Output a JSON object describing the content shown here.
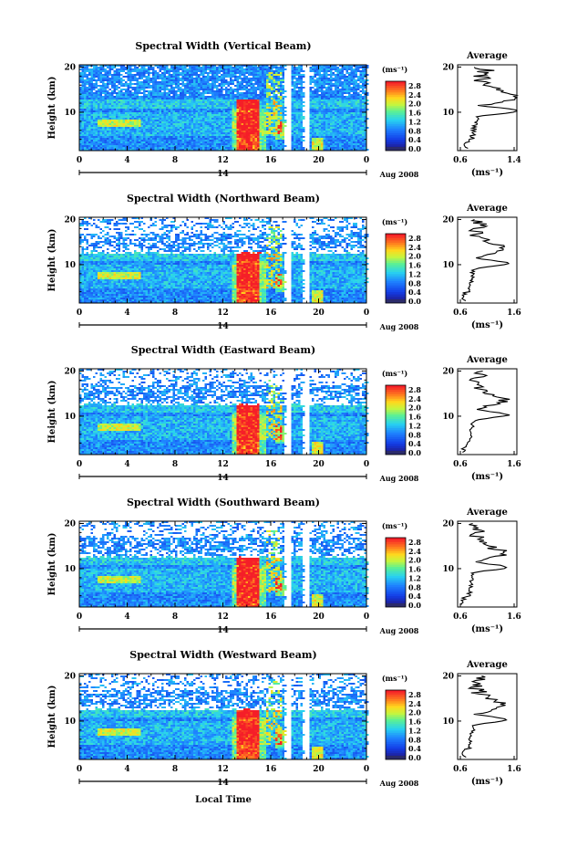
{
  "figure": {
    "xlabel": "Local Time",
    "date_label": "Aug 2008",
    "day_label": "14",
    "ylabel": "Height (km)",
    "average_title": "Average",
    "unit_label": "(ms⁻¹)"
  },
  "chart_data": [
    {
      "type": "heatmap",
      "title": "Spectral Width (Vertical Beam)",
      "xlabel": "",
      "ylabel": "Height (km)",
      "x_ticks": [
        "0",
        "4",
        "8",
        "12",
        "16",
        "20",
        "0"
      ],
      "xlim": [
        0,
        24
      ],
      "y_ticks": [
        "20",
        "10"
      ],
      "ylim": [
        1.5,
        20.5
      ],
      "colorbar": {
        "unit": "(ms⁻¹)",
        "ticks": [
          "2.8",
          "2.4",
          "2.0",
          "1.6",
          "1.2",
          "0.8",
          "0.4",
          "0.0"
        ],
        "range": [
          0.0,
          3.0
        ]
      },
      "average_profile": {
        "title": "Average",
        "x_ticks": [
          "0.6",
          "1.4"
        ],
        "xlim": [
          0.6,
          1.4
        ],
        "xunit": "(ms⁻¹)",
        "y_ticks": [
          "20",
          "10"
        ]
      },
      "data_gaps_hours": [
        [
          17.1,
          17.6
        ],
        [
          18.6,
          19.1
        ]
      ],
      "grid": false
    },
    {
      "type": "heatmap",
      "title": "Spectral Width (Northward Beam)",
      "xlabel": "",
      "ylabel": "Height (km)",
      "x_ticks": [
        "0",
        "4",
        "8",
        "12",
        "16",
        "20",
        "0"
      ],
      "xlim": [
        0,
        24
      ],
      "y_ticks": [
        "20",
        "10"
      ],
      "ylim": [
        1.5,
        20.5
      ],
      "colorbar": {
        "unit": "(ms⁻¹)",
        "ticks": [
          "2.8",
          "2.4",
          "2.0",
          "1.6",
          "1.2",
          "0.8",
          "0.4",
          "0.0"
        ],
        "range": [
          0.0,
          3.0
        ]
      },
      "average_profile": {
        "title": "Average",
        "x_ticks": [
          "0.6",
          "1.6"
        ],
        "xlim": [
          0.6,
          1.6
        ],
        "xunit": "(ms⁻¹)",
        "y_ticks": [
          "20",
          "10"
        ]
      },
      "data_gaps_hours": [
        [
          17.1,
          17.6
        ],
        [
          18.6,
          19.1
        ]
      ],
      "grid": false
    },
    {
      "type": "heatmap",
      "title": "Spectral Width (Eastward Beam)",
      "xlabel": "",
      "ylabel": "Height (km)",
      "x_ticks": [
        "0",
        "4",
        "8",
        "12",
        "16",
        "20",
        "0"
      ],
      "xlim": [
        0,
        24
      ],
      "y_ticks": [
        "20",
        "10"
      ],
      "ylim": [
        1.5,
        20.5
      ],
      "colorbar": {
        "unit": "(ms⁻¹)",
        "ticks": [
          "2.8",
          "2.4",
          "2.0",
          "1.6",
          "1.2",
          "0.8",
          "0.4",
          "0.0"
        ],
        "range": [
          0.0,
          3.0
        ]
      },
      "average_profile": {
        "title": "Average",
        "x_ticks": [
          "0.6",
          "1.6"
        ],
        "xlim": [
          0.6,
          1.6
        ],
        "xunit": "(ms⁻¹)",
        "y_ticks": [
          "20",
          "10"
        ]
      },
      "data_gaps_hours": [
        [
          17.1,
          17.6
        ],
        [
          18.6,
          19.1
        ]
      ],
      "grid": false
    },
    {
      "type": "heatmap",
      "title": "Spectral Width (Southward Beam)",
      "xlabel": "",
      "ylabel": "Height (km)",
      "x_ticks": [
        "0",
        "4",
        "8",
        "12",
        "16",
        "20",
        "0"
      ],
      "xlim": [
        0,
        24
      ],
      "y_ticks": [
        "20",
        "10"
      ],
      "ylim": [
        1.5,
        20.5
      ],
      "colorbar": {
        "unit": "(ms⁻¹)",
        "ticks": [
          "2.8",
          "2.4",
          "2.0",
          "1.6",
          "1.2",
          "0.8",
          "0.4",
          "0.0"
        ],
        "range": [
          0.0,
          3.0
        ]
      },
      "average_profile": {
        "title": "Average",
        "x_ticks": [
          "0.6",
          "1.6"
        ],
        "xlim": [
          0.6,
          1.6
        ],
        "xunit": "(ms⁻¹)",
        "y_ticks": [
          "20",
          "10"
        ]
      },
      "data_gaps_hours": [
        [
          17.1,
          17.6
        ],
        [
          18.6,
          19.1
        ]
      ],
      "grid": false
    },
    {
      "type": "heatmap",
      "title": "Spectral Width (Westward Beam)",
      "xlabel": "",
      "ylabel": "Height (km)",
      "x_ticks": [
        "0",
        "4",
        "8",
        "12",
        "16",
        "20",
        "0"
      ],
      "xlim": [
        0,
        24
      ],
      "y_ticks": [
        "20",
        "10"
      ],
      "ylim": [
        1.5,
        20.5
      ],
      "colorbar": {
        "unit": "(ms⁻¹)",
        "ticks": [
          "2.8",
          "2.4",
          "2.0",
          "1.6",
          "1.2",
          "0.8",
          "0.4",
          "0.0"
        ],
        "range": [
          0.0,
          3.0
        ]
      },
      "average_profile": {
        "title": "Average",
        "x_ticks": [
          "0.6",
          "1.6"
        ],
        "xlim": [
          0.6,
          1.6
        ],
        "xunit": "(ms⁻¹)",
        "y_ticks": [
          "20",
          "10"
        ]
      },
      "data_gaps_hours": [
        [
          17.1,
          17.6
        ],
        [
          18.6,
          19.1
        ]
      ],
      "grid": false
    }
  ]
}
